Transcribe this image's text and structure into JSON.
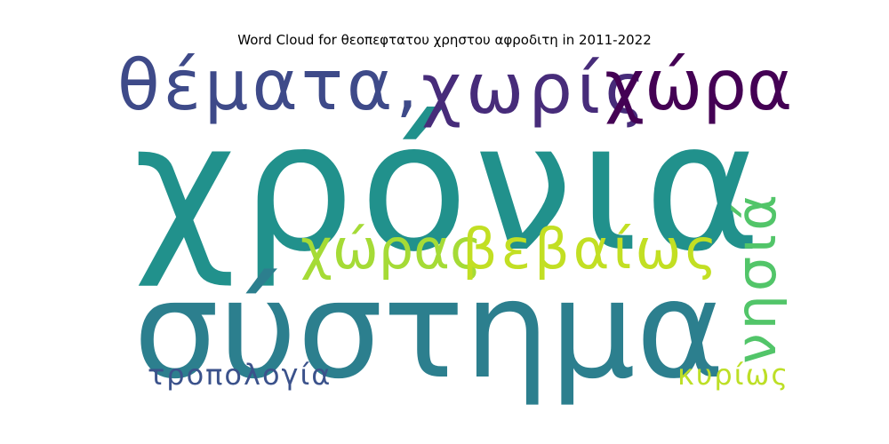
{
  "title": "Word Cloud for θεοπεφτατου χρηστου αφροδιτη in 2011-2022",
  "words": [
    {
      "text": "χρόνια",
      "color": "#21918c"
    },
    {
      "text": "σύστημα",
      "color": "#2c7f8e"
    },
    {
      "text": "θέματα,",
      "color": "#3e4a89"
    },
    {
      "text": "χωρίς",
      "color": "#472c7a"
    },
    {
      "text": "χώρα",
      "color": "#440154"
    },
    {
      "text": "χώρας",
      "color": "#a5db36"
    },
    {
      "text": "βεβαίως",
      "color": "#c2df23"
    },
    {
      "text": "νησιά",
      "color": "#52c569"
    },
    {
      "text": "τροπολογία",
      "color": "#3b528b"
    },
    {
      "text": "κυρίως",
      "color": "#bddf26"
    }
  ]
}
